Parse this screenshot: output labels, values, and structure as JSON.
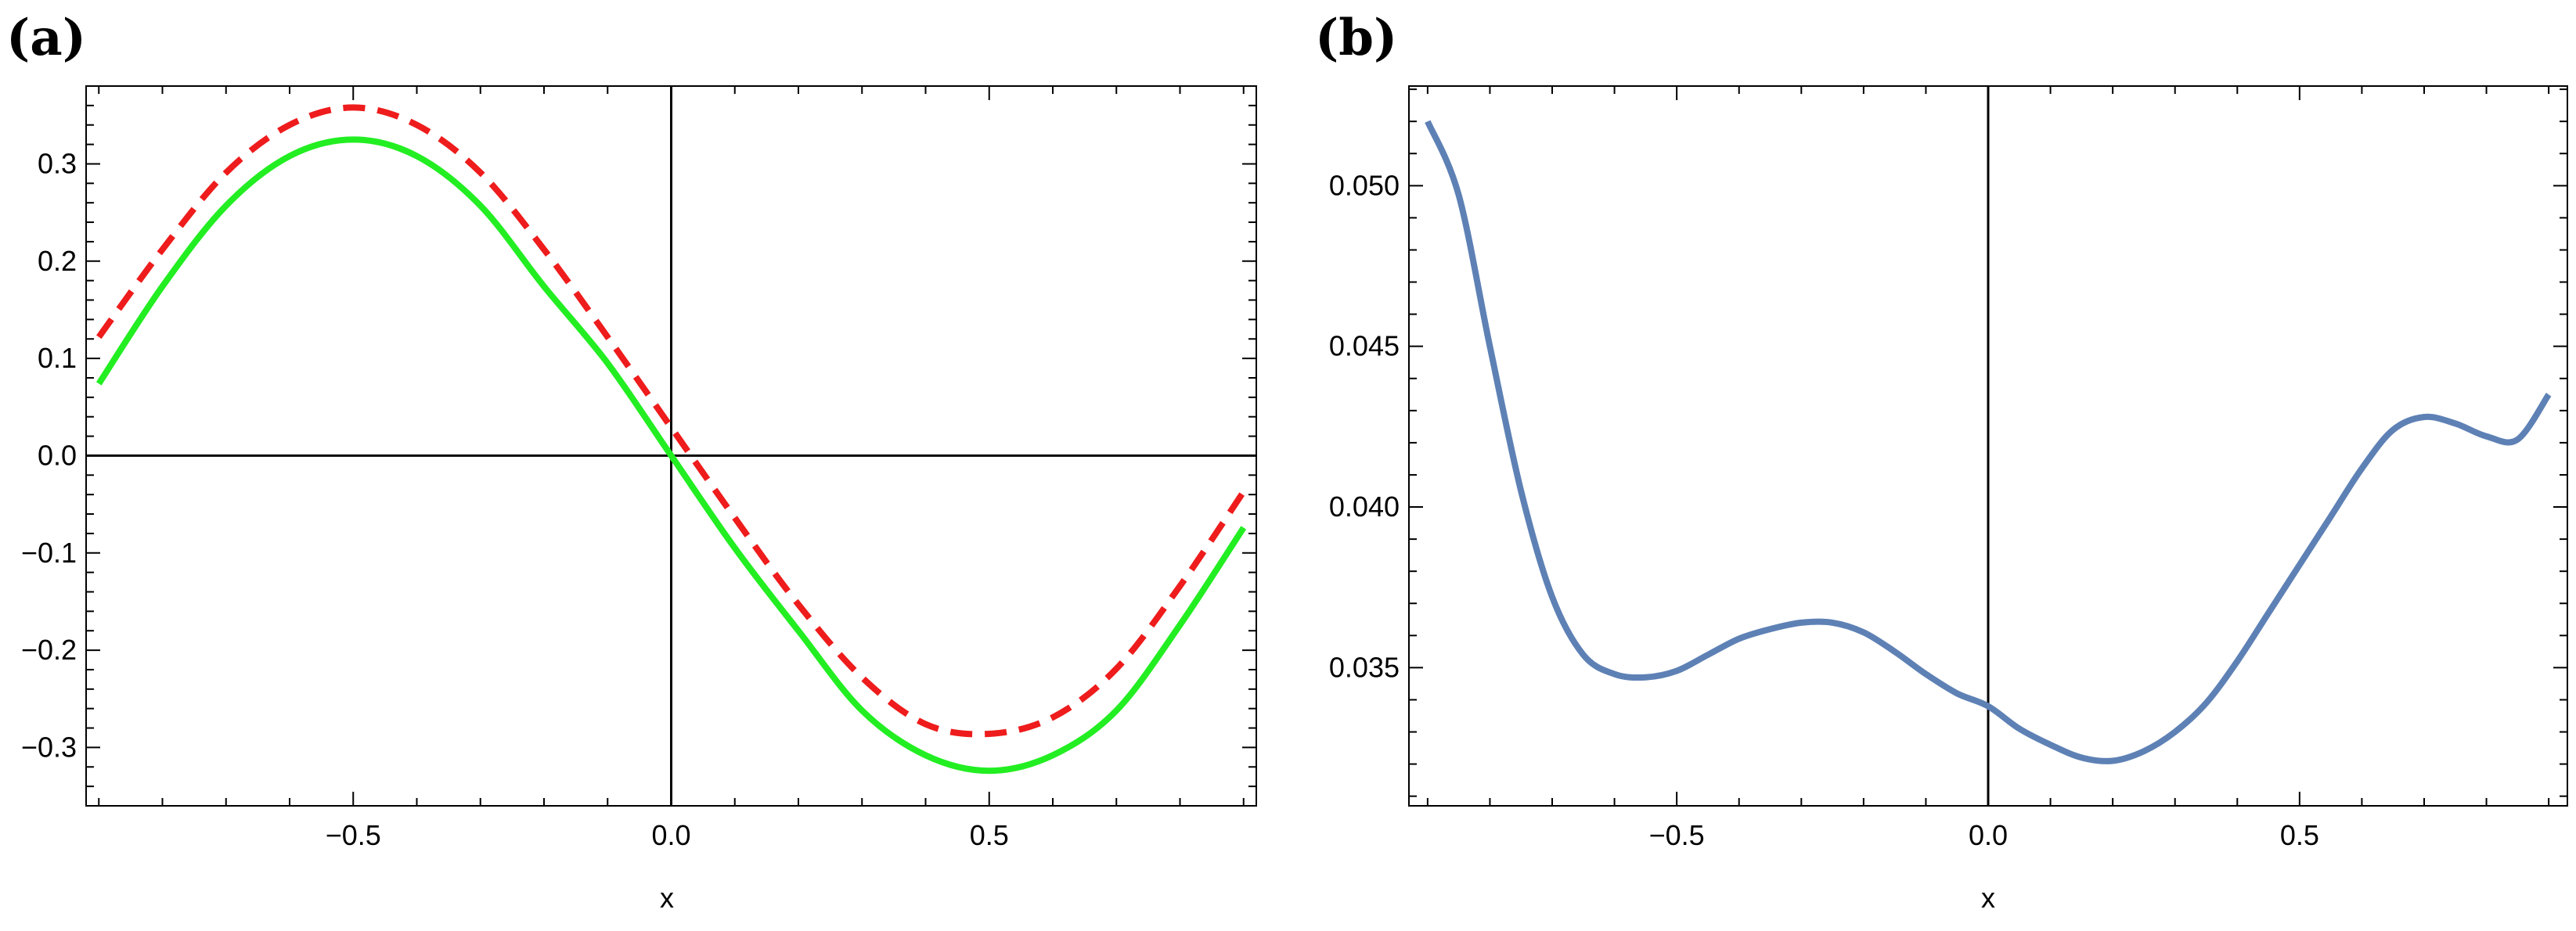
{
  "chart_data": [
    {
      "panel_label": "(a)",
      "type": "line",
      "xlabel": "x",
      "ylabel": "",
      "xlim": [
        -0.92,
        0.92
      ],
      "ylim": [
        -0.36,
        0.38
      ],
      "xticks": [
        -0.5,
        0.0,
        0.5
      ],
      "xtick_labels": [
        "−0.5",
        "0.0",
        "0.5"
      ],
      "yticks": [
        -0.3,
        -0.2,
        -0.1,
        0.0,
        0.1,
        0.2,
        0.3
      ],
      "ytick_labels": [
        "−0.3",
        "−0.2",
        "−0.1",
        "0.0",
        "0.1",
        "0.2",
        "0.3"
      ],
      "axes_lines": {
        "x0": true,
        "y0": true
      },
      "grid": false,
      "series": [
        {
          "name": "red-dashed",
          "color": "#ee1c1c",
          "style": "dashed",
          "x": [
            -0.9,
            -0.8,
            -0.7,
            -0.6,
            -0.5,
            -0.4,
            -0.3,
            -0.2,
            -0.1,
            0.0,
            0.1,
            0.2,
            0.3,
            0.4,
            0.5,
            0.6,
            0.7,
            0.8,
            0.9
          ],
          "y": [
            0.122,
            0.212,
            0.291,
            0.34,
            0.358,
            0.34,
            0.291,
            0.212,
            0.122,
            0.029,
            -0.064,
            -0.153,
            -0.228,
            -0.276,
            -0.286,
            -0.269,
            -0.219,
            -0.134,
            -0.037
          ]
        },
        {
          "name": "green-solid",
          "color": "#22ee22",
          "style": "solid",
          "x": [
            -0.9,
            -0.8,
            -0.7,
            -0.6,
            -0.5,
            -0.4,
            -0.3,
            -0.2,
            -0.1,
            0.0,
            0.1,
            0.2,
            0.3,
            0.4,
            0.5,
            0.6,
            0.7,
            0.8,
            0.9
          ],
          "y": [
            0.074,
            0.174,
            0.257,
            0.308,
            0.325,
            0.308,
            0.257,
            0.174,
            0.095,
            0.0,
            -0.095,
            -0.18,
            -0.262,
            -0.308,
            -0.324,
            -0.308,
            -0.262,
            -0.174,
            -0.074
          ]
        }
      ]
    },
    {
      "panel_label": "(b)",
      "type": "line",
      "xlabel": "x",
      "ylabel": "",
      "xlim": [
        -0.93,
        0.93
      ],
      "ylim": [
        0.0307,
        0.0531
      ],
      "xticks": [
        -0.5,
        0.0,
        0.5
      ],
      "xtick_labels": [
        "−0.5",
        "0.0",
        "0.5"
      ],
      "yticks": [
        0.035,
        0.04,
        0.045,
        0.05
      ],
      "ytick_labels": [
        "0.035",
        "0.040",
        "0.045",
        "0.050"
      ],
      "axes_lines": {
        "x0": false,
        "y0": true
      },
      "grid": false,
      "series": [
        {
          "name": "blue-solid",
          "color": "#5e81b5",
          "style": "solid",
          "x": [
            -0.9,
            -0.85,
            -0.8,
            -0.75,
            -0.7,
            -0.65,
            -0.6,
            -0.55,
            -0.5,
            -0.45,
            -0.4,
            -0.35,
            -0.3,
            -0.25,
            -0.2,
            -0.15,
            -0.1,
            -0.05,
            0.0,
            0.05,
            0.1,
            0.15,
            0.2,
            0.25,
            0.3,
            0.35,
            0.4,
            0.45,
            0.5,
            0.55,
            0.6,
            0.65,
            0.7,
            0.75,
            0.8,
            0.85,
            0.9
          ],
          "y": [
            0.052,
            0.0497,
            0.045,
            0.0405,
            0.0372,
            0.0354,
            0.0348,
            0.0347,
            0.0349,
            0.0354,
            0.0359,
            0.0362,
            0.0364,
            0.0364,
            0.0361,
            0.0355,
            0.0348,
            0.0342,
            0.0338,
            0.0331,
            0.0326,
            0.0322,
            0.0321,
            0.0324,
            0.033,
            0.0339,
            0.0352,
            0.0367,
            0.0382,
            0.0397,
            0.0412,
            0.0424,
            0.0428,
            0.0426,
            0.0422,
            0.0421,
            0.0435
          ]
        }
      ]
    }
  ]
}
